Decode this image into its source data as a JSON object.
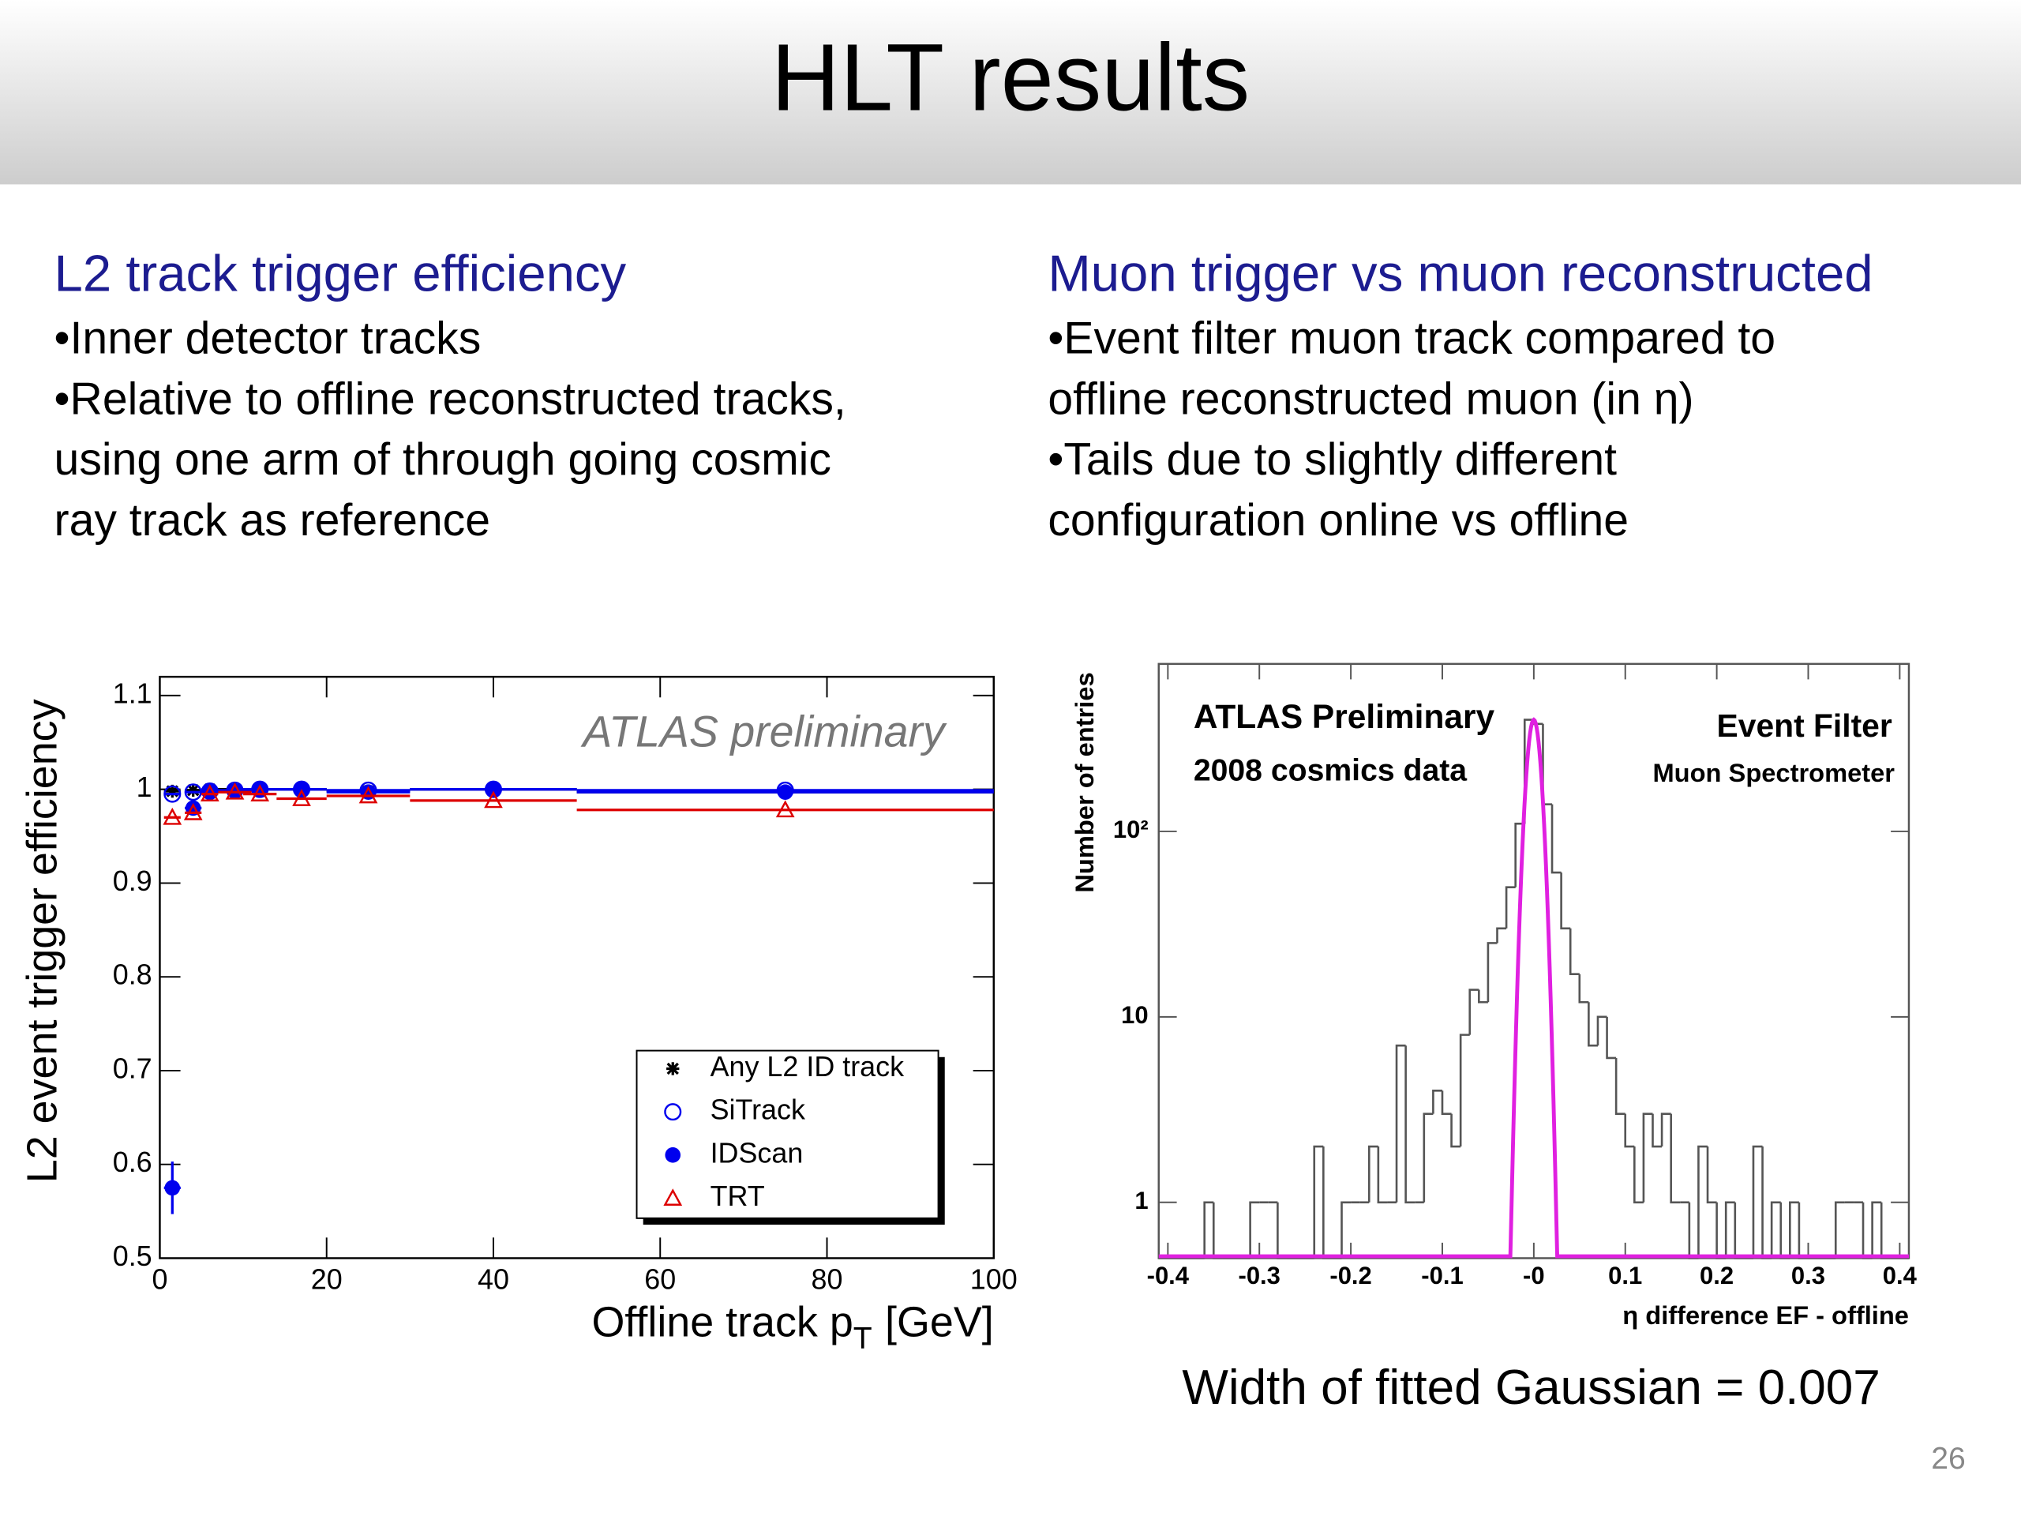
{
  "slide": {
    "title": "HLT results",
    "page_number": "26",
    "left": {
      "heading": "L2 track trigger efficiency",
      "lines": [
        "•Inner detector tracks",
        "•Relative to offline reconstructed tracks,",
        "using one arm of through going cosmic",
        "ray track as reference"
      ]
    },
    "right": {
      "heading": "Muon trigger vs muon reconstructed",
      "lines": [
        "•Event filter muon track compared to",
        "offline reconstructed muon (in η)",
        "•Tails due to slightly different",
        "configuration online vs offline"
      ]
    },
    "caption": "Width of fitted Gaussian = 0.007"
  },
  "chart_data": [
    {
      "type": "scatter",
      "ylabel": "L2 event trigger efficiency",
      "xlabel": "Offline track p",
      "xlabel_sub": "T",
      "xlabel_unit": "[GeV]",
      "annotation": "ATLAS preliminary",
      "xlim": [
        0,
        100
      ],
      "xticks": [
        0,
        20,
        40,
        60,
        80,
        100
      ],
      "ylim": [
        0.5,
        1.12
      ],
      "yticks": [
        0.5,
        0.6,
        0.7,
        0.8,
        0.9,
        1,
        1.1
      ],
      "legend": "lower right",
      "x": [
        1.5,
        4,
        6,
        9,
        12,
        17,
        25,
        40,
        75
      ],
      "xerr": [
        1,
        1,
        1,
        2,
        2,
        3,
        5,
        10,
        25
      ],
      "series": [
        {
          "name": "Any L2 ID track",
          "color": "#000000",
          "marker": "star",
          "values": [
            0.998,
            0.999,
            1.0,
            1.0,
            1.0,
            1.0,
            0.998,
            1.0,
            0.997
          ]
        },
        {
          "name": "SiTrack",
          "color": "#0000ee",
          "marker": "open-circle",
          "values": [
            0.995,
            0.997,
            0.998,
            0.999,
            1.0,
            1.0,
            0.999,
            1.0,
            0.999
          ]
        },
        {
          "name": "IDScan",
          "color": "#0000ee",
          "marker": "filled-circle",
          "values": [
            0.575,
            0.98,
            0.997,
            0.998,
            1.0,
            1.0,
            0.997,
            1.0,
            0.997
          ],
          "yerr": [
            0.028,
            0.006,
            0.003,
            0.002,
            0.002,
            0.002,
            0.002,
            0.002,
            0.003
          ]
        },
        {
          "name": "TRT",
          "color": "#dd0000",
          "marker": "open-triangle",
          "values": [
            0.97,
            0.975,
            0.995,
            0.997,
            0.995,
            0.99,
            0.993,
            0.988,
            0.978
          ]
        }
      ]
    },
    {
      "type": "histogram",
      "ylabel": "Number of entries",
      "xlabel": "η difference EF - offline",
      "annotations": [
        "ATLAS Preliminary",
        "2008 cosmics data",
        "Event Filter",
        "Muon Spectrometer"
      ],
      "log_y": true,
      "color": "#555555",
      "xlim": [
        -0.41,
        0.41
      ],
      "xticks": [
        -0.4,
        -0.3,
        -0.2,
        -0.1,
        {
          "value": 0,
          "label": "-0"
        },
        0.1,
        0.2,
        0.3,
        0.4
      ],
      "ylim": [
        0.5,
        800
      ],
      "yticks": [
        1,
        10,
        {
          "value": 100,
          "label": "10²"
        }
      ],
      "bins": [
        -0.41,
        -0.4,
        -0.39,
        -0.38,
        -0.37,
        -0.36,
        -0.35,
        -0.34,
        -0.33,
        -0.32,
        -0.31,
        -0.3,
        -0.29,
        -0.28,
        -0.27,
        -0.26,
        -0.25,
        -0.24,
        -0.23,
        -0.22,
        -0.21,
        -0.2,
        -0.19,
        -0.18,
        -0.17,
        -0.16,
        -0.15,
        -0.14,
        -0.13,
        -0.12,
        -0.11,
        -0.1,
        -0.09,
        -0.08,
        -0.07,
        -0.06,
        -0.05,
        -0.04,
        -0.03,
        -0.02,
        -0.01,
        0,
        0.01,
        0.02,
        0.03,
        0.04,
        0.05,
        0.06,
        0.07,
        0.08,
        0.09,
        0.1,
        0.11,
        0.12,
        0.13,
        0.14,
        0.15,
        0.16,
        0.17,
        0.18,
        0.19,
        0.2,
        0.21,
        0.22,
        0.23,
        0.24,
        0.25,
        0.26,
        0.27,
        0.28,
        0.29,
        0.3,
        0.31,
        0.32,
        0.33,
        0.34,
        0.35,
        0.36,
        0.37,
        0.38,
        0.39,
        0.4,
        0.41
      ],
      "counts": [
        0,
        0,
        0,
        0,
        0,
        1,
        0,
        0,
        0,
        0,
        1,
        1,
        1,
        0,
        0,
        0,
        0,
        2,
        0,
        0,
        1,
        1,
        1,
        2,
        1,
        1,
        7,
        1,
        1,
        3,
        4,
        3,
        2,
        8,
        14,
        12,
        25,
        30,
        50,
        110,
        400,
        380,
        140,
        60,
        30,
        17,
        12,
        7,
        10,
        6,
        3,
        2,
        1,
        3,
        2,
        3,
        1,
        1,
        0,
        2,
        1,
        0,
        1,
        0,
        0,
        2,
        0,
        1,
        0,
        1,
        0,
        0,
        0,
        0,
        1,
        1,
        1,
        0,
        1,
        0,
        0,
        0
      ],
      "fit": {
        "color": "#e020e0",
        "amplitude": 400,
        "mean": 0,
        "sigma": 0.007
      }
    }
  ]
}
